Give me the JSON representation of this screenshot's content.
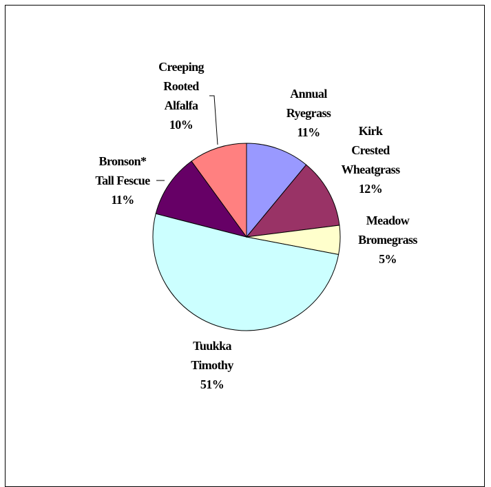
{
  "chart_data": {
    "type": "pie",
    "title": "",
    "slices": [
      {
        "name": "Annual Ryegrass",
        "label": [
          "Annual",
          "Ryegrass",
          "11%"
        ],
        "value": 11,
        "color": "#9999ff"
      },
      {
        "name": "Kirk Crested Wheatgrass",
        "label": [
          "Kirk",
          "Crested",
          "Wheatgrass",
          "12%"
        ],
        "value": 12,
        "color": "#993366"
      },
      {
        "name": "Meadow Bromegrass",
        "label": [
          "Meadow",
          "Bromegrass",
          "5%"
        ],
        "value": 5,
        "color": "#ffffcc"
      },
      {
        "name": "Tuukka Timothy",
        "label": [
          "Tuukka",
          "Timothy",
          "51%"
        ],
        "value": 51,
        "color": "#ccffff"
      },
      {
        "name": "Bronson* Tall Fescue",
        "label": [
          "Bronson*",
          "Tall Fescue",
          "11%"
        ],
        "value": 11,
        "color": "#660066"
      },
      {
        "name": "Creeping Rooted Alfalfa",
        "label": [
          "Creeping",
          "Rooted",
          "Alfalfa",
          "10%"
        ],
        "value": 10,
        "color": "#ff8080"
      }
    ],
    "start_angle_deg": 0,
    "direction": "clockwise",
    "legend": "none",
    "grid": false
  }
}
